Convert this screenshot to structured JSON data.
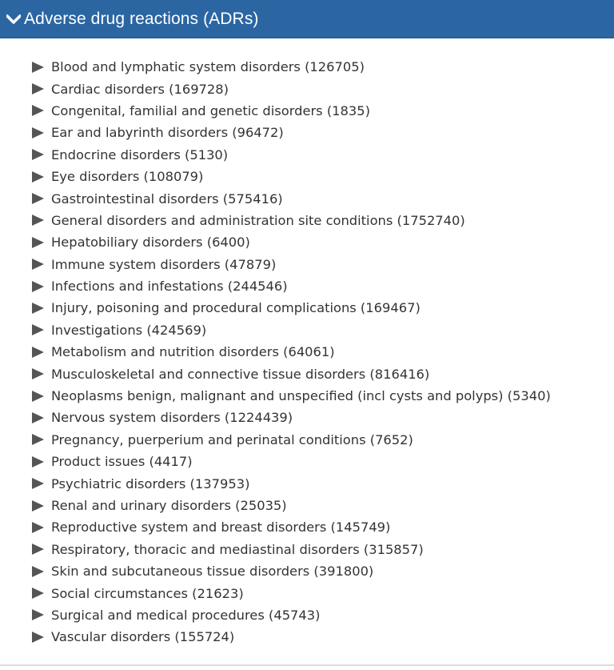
{
  "header": {
    "title": "Adverse drug reactions (ADRs)",
    "icon": "chevron-down-icon",
    "color": "#2b66a3"
  },
  "items": [
    {
      "label": "Blood and lymphatic system disorders (126705)"
    },
    {
      "label": "Cardiac disorders (169728)"
    },
    {
      "label": "Congenital, familial and genetic disorders (1835)"
    },
    {
      "label": "Ear and labyrinth disorders (96472)"
    },
    {
      "label": "Endocrine disorders (5130)"
    },
    {
      "label": "Eye disorders (108079)"
    },
    {
      "label": "Gastrointestinal disorders (575416)"
    },
    {
      "label": "General disorders and administration site conditions (1752740)"
    },
    {
      "label": "Hepatobiliary disorders (6400)"
    },
    {
      "label": "Immune system disorders (47879)"
    },
    {
      "label": "Infections and infestations (244546)"
    },
    {
      "label": "Injury, poisoning and procedural complications (169467)"
    },
    {
      "label": "Investigations (424569)"
    },
    {
      "label": "Metabolism and nutrition disorders (64061)"
    },
    {
      "label": "Musculoskeletal and connective tissue disorders (816416)"
    },
    {
      "label": "Neoplasms benign, malignant and unspecified (incl cysts and polyps) (5340)"
    },
    {
      "label": "Nervous system disorders (1224439)"
    },
    {
      "label": "Pregnancy, puerperium and perinatal conditions (7652)"
    },
    {
      "label": "Product issues (4417)"
    },
    {
      "label": "Psychiatric disorders (137953)"
    },
    {
      "label": "Renal and urinary disorders (25035)"
    },
    {
      "label": "Reproductive system and breast disorders (145749)"
    },
    {
      "label": "Respiratory, thoracic and mediastinal disorders (315857)"
    },
    {
      "label": "Skin and subcutaneous tissue disorders (391800)"
    },
    {
      "label": "Social circumstances (21623)"
    },
    {
      "label": "Surgical and medical procedures (45743)"
    },
    {
      "label": "Vascular disorders (155724)"
    }
  ]
}
